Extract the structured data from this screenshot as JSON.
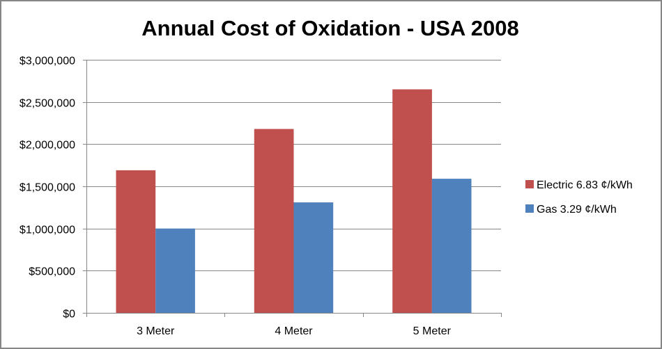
{
  "chart_data": {
    "type": "bar",
    "title": "Annual Cost of Oxidation - USA 2008",
    "xlabel": "",
    "ylabel": "",
    "categories": [
      "3 Meter",
      "4 Meter",
      "5 Meter"
    ],
    "series": [
      {
        "name": "Electric 6.83 ¢/kWh",
        "color": "#c0504d",
        "values": [
          1690000,
          2180000,
          2650000
        ]
      },
      {
        "name": "Gas 3.29 ¢/kWh",
        "color": "#4f81bd",
        "values": [
          1000000,
          1310000,
          1590000
        ]
      }
    ],
    "ylim": [
      0,
      3000000
    ],
    "yticks": [
      0,
      500000,
      1000000,
      1500000,
      2000000,
      2500000,
      3000000
    ],
    "ytick_labels": [
      "$0",
      "$500,000",
      "$1,000,000",
      "$1,500,000",
      "$2,000,000",
      "$2,500,000",
      "$3,000,000"
    ],
    "grid": true,
    "legend_position": "right"
  }
}
